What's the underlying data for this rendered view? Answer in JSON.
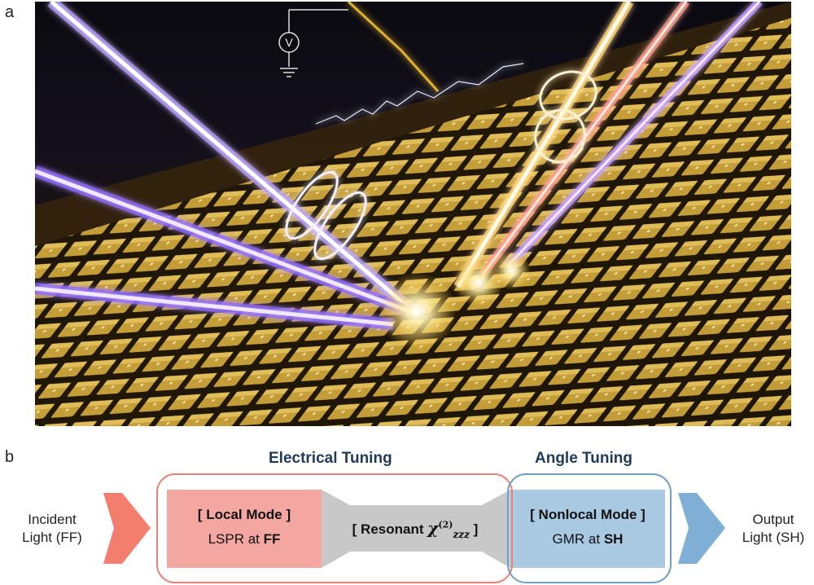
{
  "panels": {
    "a_label": "a",
    "b_label": "b"
  },
  "illustration": {
    "voltmeter_symbol": "V",
    "icons": [
      "voltmeter-icon",
      "ground-icon",
      "electric-spark",
      "metasurface-array",
      "laser-beam",
      "polarization-loop"
    ]
  },
  "diagram": {
    "electrical_tuning_heading": "Electrical Tuning",
    "angle_tuning_heading": "Angle Tuning",
    "incident_line1": "Incident",
    "incident_line2": "Light (FF)",
    "output_line1": "Output",
    "output_line2": "Light (SH)",
    "local_mode_title": "[ Local Mode ]",
    "local_mode_sub_prefix": "LSPR at ",
    "local_mode_sub_bold": "FF",
    "resonant_prefix": "[ Resonant ",
    "resonant_symbol": "χ",
    "resonant_subscript": "zzz",
    "resonant_superscript": "(2)",
    "resonant_suffix": " ]",
    "nonlocal_mode_title": "[ Nonlocal Mode ]",
    "nonlocal_mode_sub_prefix": "GMR at ",
    "nonlocal_mode_sub_bold": "SH"
  },
  "colors": {
    "electrical_border": "#e8827a",
    "angle_border": "#6fa0c8",
    "local_fill": "#f4a7a0",
    "nonlocal_fill": "#a9c8e2",
    "middle_fill": "#c8c8c8",
    "arrow_in": "#f47e6e",
    "arrow_out": "#7fafd4",
    "heading_text": "#1f3b57"
  }
}
